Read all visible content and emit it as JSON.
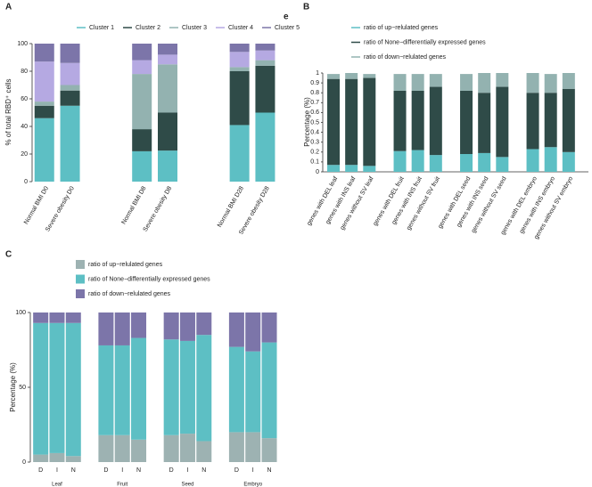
{
  "chart_data": [
    {
      "type": "stacked-bar",
      "panel": "A",
      "annotation": "e",
      "ylabel": "% of total RBD⁺ cells",
      "categories": [
        "Normal BMI D0",
        "Severe obesity D0",
        "Normal BMI D8",
        "Severe obesity D8",
        "Normal BMI D28",
        "Severe obesity D28"
      ],
      "series": [
        {
          "name": "Cluster 1",
          "color": "#5dbfc4",
          "values": [
            46,
            55,
            22,
            22.5,
            41,
            50
          ]
        },
        {
          "name": "Cluster 2",
          "color": "#2f4b48",
          "values": [
            9,
            11,
            16,
            27.5,
            39,
            34
          ]
        },
        {
          "name": "Cluster 3",
          "color": "#93b2b0",
          "values": [
            3,
            4,
            40,
            35,
            3,
            4
          ]
        },
        {
          "name": "Cluster 4",
          "color": "#b5a9e2",
          "values": [
            29,
            16,
            10,
            7,
            11,
            7
          ]
        },
        {
          "name": "Cluster 5",
          "color": "#7c75a9",
          "values": [
            13,
            14,
            12,
            8,
            6,
            5
          ]
        }
      ],
      "ylim": [
        0,
        100
      ],
      "yticks": [
        0,
        20,
        40,
        60,
        80,
        100
      ],
      "legend": "top"
    },
    {
      "type": "stacked-bar",
      "panel": "B",
      "ylabel": "Percentage (%)",
      "categories": [
        "genes with DEL leaf",
        "genes with INS leaf",
        "genes without SV leaf",
        "genes with DEL fruit",
        "genes with INS fruit",
        "genes without SV fruit",
        "genes with DEL seed",
        "genes with INS seed",
        "genes without SV seed",
        "genes with DEL embryo",
        "genes with INS embryo",
        "genes without SV embryo"
      ],
      "series": [
        {
          "name": "ratio of up−relulated genes",
          "color": "#5dbfc4",
          "values": [
            0.07,
            0.07,
            0.06,
            0.21,
            0.22,
            0.17,
            0.18,
            0.19,
            0.15,
            0.23,
            0.25,
            0.2
          ]
        },
        {
          "name": "ratio of None−differentially expressed genes",
          "color": "#2f4b48",
          "values": [
            0.87,
            0.87,
            0.89,
            0.61,
            0.6,
            0.69,
            0.64,
            0.61,
            0.71,
            0.57,
            0.55,
            0.64
          ]
        },
        {
          "name": "ratio of down−relulated genes",
          "color": "#93b2b0",
          "values": [
            0.05,
            0.06,
            0.04,
            0.17,
            0.17,
            0.13,
            0.17,
            0.2,
            0.14,
            0.2,
            0.19,
            0.16
          ]
        }
      ],
      "ylim": [
        0,
        1
      ],
      "yticks": [
        0,
        0.1,
        0.2,
        0.3,
        0.4,
        0.5,
        0.6,
        0.7,
        0.8,
        0.9,
        1
      ],
      "legend": "top-left"
    },
    {
      "type": "stacked-bar",
      "panel": "C",
      "ylabel": "Percentage (%)",
      "categories": [
        "D",
        "I",
        "N",
        "D",
        "I",
        "N",
        "D",
        "I",
        "N",
        "D",
        "I",
        "N"
      ],
      "groups": [
        "Leaf",
        "Fruit",
        "Seed",
        "Embryo"
      ],
      "series": [
        {
          "name": "ratio of up−relulated genes",
          "color": "#9db2b2",
          "values": [
            5,
            6,
            4,
            18,
            18,
            15,
            18,
            19,
            14,
            20,
            20,
            16
          ]
        },
        {
          "name": "ratio of None−differentially expressed genes",
          "color": "#5dbfc4",
          "values": [
            88,
            87,
            89,
            60,
            60,
            68,
            64,
            62,
            71,
            57,
            54,
            64
          ]
        },
        {
          "name": "ratio of down−relulated genes",
          "color": "#7c75a9",
          "values": [
            7,
            7,
            7,
            22,
            22,
            17,
            18,
            19,
            15,
            23,
            26,
            20
          ]
        }
      ],
      "ylim": [
        0,
        100
      ],
      "yticks": [
        0,
        50,
        100
      ],
      "legend": "top-left"
    }
  ]
}
